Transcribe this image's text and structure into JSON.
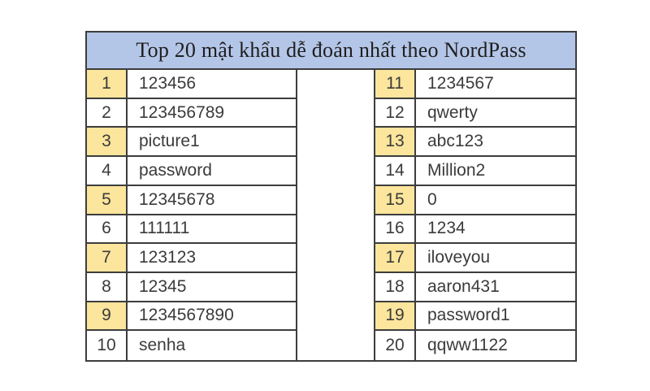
{
  "title": "Top 20 mật khẩu dễ đoán nhất theo NordPass",
  "source": "NordPass",
  "colors": {
    "title_bg": "#b4c6e7",
    "rank_highlight_bg": "#fce59c",
    "cell_bg": "#ffffff",
    "border": "#3d3d3d",
    "text": "#3b3b3b",
    "title_text": "#1e1e1e"
  },
  "table": {
    "left_rows": [
      {
        "rank": "1",
        "password": "123456"
      },
      {
        "rank": "2",
        "password": "123456789"
      },
      {
        "rank": "3",
        "password": "picture1"
      },
      {
        "rank": "4",
        "password": "password"
      },
      {
        "rank": "5",
        "password": "12345678"
      },
      {
        "rank": "6",
        "password": "111111"
      },
      {
        "rank": "7",
        "password": "123123"
      },
      {
        "rank": "8",
        "password": "12345"
      },
      {
        "rank": "9",
        "password": "1234567890"
      },
      {
        "rank": "10",
        "password": "senha"
      }
    ],
    "right_rows": [
      {
        "rank": "11",
        "password": "1234567"
      },
      {
        "rank": "12",
        "password": "qwerty"
      },
      {
        "rank": "13",
        "password": "abc123"
      },
      {
        "rank": "14",
        "password": "Million2"
      },
      {
        "rank": "15",
        "password": "0"
      },
      {
        "rank": "16",
        "password": "1234"
      },
      {
        "rank": "17",
        "password": "iloveyou"
      },
      {
        "rank": "18",
        "password": "aaron431"
      },
      {
        "rank": "19",
        "password": "password1"
      },
      {
        "rank": "20",
        "password": "qqww1122"
      }
    ]
  },
  "chart_data": {
    "type": "table",
    "title": "Top 20 mật khẩu dễ đoán nhất theo NordPass",
    "columns": [
      "rank",
      "password"
    ],
    "rows": [
      [
        1,
        "123456"
      ],
      [
        2,
        "123456789"
      ],
      [
        3,
        "picture1"
      ],
      [
        4,
        "password"
      ],
      [
        5,
        "12345678"
      ],
      [
        6,
        "111111"
      ],
      [
        7,
        "123123"
      ],
      [
        8,
        "12345"
      ],
      [
        9,
        "1234567890"
      ],
      [
        10,
        "senha"
      ],
      [
        11,
        "1234567"
      ],
      [
        12,
        "qwerty"
      ],
      [
        13,
        "abc123"
      ],
      [
        14,
        "Million2"
      ],
      [
        15,
        "0"
      ],
      [
        16,
        "1234"
      ],
      [
        17,
        "iloveyou"
      ],
      [
        18,
        "aaron431"
      ],
      [
        19,
        "password1"
      ],
      [
        20,
        "qqww1122"
      ]
    ]
  }
}
